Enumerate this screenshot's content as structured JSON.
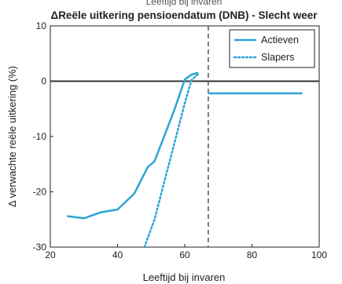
{
  "chart_data": {
    "type": "line",
    "cut_off_text": "Leeftijd bij invaren",
    "title": "ΔReële uitkering pensioendatum (DNB) - Slecht weer",
    "xlabel": "Leeftijd bij invaren",
    "ylabel": "Δ verwachte reële uitkering (%)",
    "xlim": [
      20,
      100
    ],
    "ylim": [
      -30,
      10
    ],
    "xticks": [
      "20",
      "40",
      "60",
      "80",
      "100"
    ],
    "yticks": [
      "10",
      "0",
      "-10",
      "-20",
      "-30"
    ],
    "xtick_values": [
      20,
      40,
      60,
      80,
      100
    ],
    "ytick_values": [
      10,
      0,
      -10,
      -20,
      -30
    ],
    "zero_line": 0,
    "pension_age_marker": 67,
    "legend_position": "top-right",
    "colors": {
      "series": "#2ba5d6",
      "zero": "#333333",
      "marker": "#555555",
      "frame": "#222222"
    },
    "series": [
      {
        "name": "Actieven",
        "style": "solid",
        "x": [
          25,
          30,
          35,
          40,
          45,
          49,
          51,
          54,
          57,
          60,
          62,
          64,
          67,
          95
        ],
        "y": [
          -24.4,
          -24.8,
          -23.7,
          -23.2,
          -20.3,
          -15.5,
          -14.5,
          -9.8,
          -5.0,
          0.3,
          1.2,
          1.5,
          -2.2,
          -2.2
        ]
      },
      {
        "name": "Slapers",
        "style": "dotted",
        "x": [
          48,
          51,
          54,
          57,
          60,
          62,
          64
        ],
        "y": [
          -30,
          -25.0,
          -18.0,
          -11.0,
          -4.0,
          0.2,
          1.3
        ]
      }
    ]
  }
}
